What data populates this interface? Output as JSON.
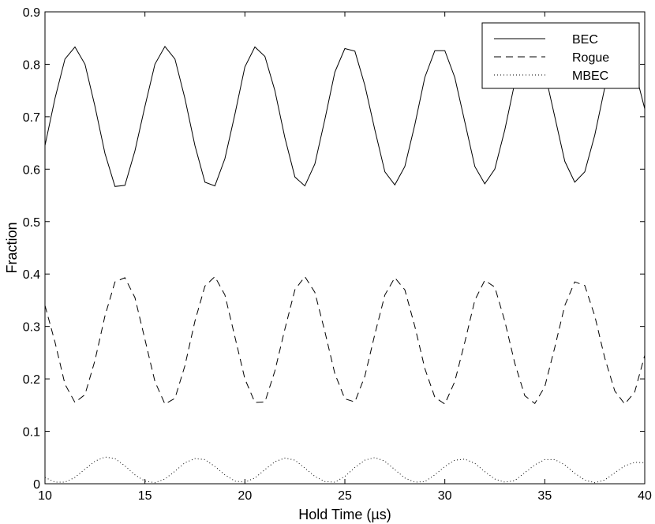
{
  "chart_data": {
    "type": "line",
    "title": "",
    "xlabel": "Hold Time (µs)",
    "ylabel": "Fraction",
    "xlim": [
      10,
      40
    ],
    "ylim": [
      0,
      0.9
    ],
    "xticks": [
      "10",
      "15",
      "20",
      "25",
      "30",
      "35",
      "40"
    ],
    "yticks": [
      "0",
      "0.1",
      "0.2",
      "0.3",
      "0.4",
      "0.5",
      "0.6",
      "0.7",
      "0.8",
      "0.9"
    ],
    "grid": false,
    "legend_position": "top-right",
    "series": [
      {
        "name": "BEC",
        "line_style": "solid",
        "points": [
          [
            10.0,
            0.645
          ],
          [
            10.5,
            0.735
          ],
          [
            11.0,
            0.81
          ],
          [
            11.5,
            0.833
          ],
          [
            12.0,
            0.8
          ],
          [
            12.5,
            0.72
          ],
          [
            13.0,
            0.63
          ],
          [
            13.5,
            0.567
          ],
          [
            14.0,
            0.569
          ],
          [
            14.5,
            0.635
          ],
          [
            15.0,
            0.72
          ],
          [
            15.5,
            0.8
          ],
          [
            16.0,
            0.834
          ],
          [
            16.5,
            0.81
          ],
          [
            17.0,
            0.735
          ],
          [
            17.5,
            0.645
          ],
          [
            18.0,
            0.575
          ],
          [
            18.5,
            0.568
          ],
          [
            19.0,
            0.62
          ],
          [
            19.5,
            0.705
          ],
          [
            20.0,
            0.795
          ],
          [
            20.5,
            0.833
          ],
          [
            21.0,
            0.815
          ],
          [
            21.5,
            0.75
          ],
          [
            22.0,
            0.66
          ],
          [
            22.5,
            0.585
          ],
          [
            23.0,
            0.568
          ],
          [
            23.5,
            0.61
          ],
          [
            24.0,
            0.695
          ],
          [
            24.5,
            0.785
          ],
          [
            25.0,
            0.83
          ],
          [
            25.5,
            0.825
          ],
          [
            26.0,
            0.76
          ],
          [
            26.5,
            0.675
          ],
          [
            27.0,
            0.595
          ],
          [
            27.5,
            0.57
          ],
          [
            28.0,
            0.605
          ],
          [
            28.5,
            0.685
          ],
          [
            29.0,
            0.775
          ],
          [
            29.5,
            0.826
          ],
          [
            30.0,
            0.826
          ],
          [
            30.5,
            0.775
          ],
          [
            31.0,
            0.69
          ],
          [
            31.5,
            0.605
          ],
          [
            32.0,
            0.572
          ],
          [
            32.5,
            0.6
          ],
          [
            33.0,
            0.675
          ],
          [
            33.5,
            0.765
          ],
          [
            34.0,
            0.822
          ],
          [
            34.5,
            0.83
          ],
          [
            35.0,
            0.785
          ],
          [
            35.5,
            0.7
          ],
          [
            36.0,
            0.615
          ],
          [
            36.5,
            0.575
          ],
          [
            37.0,
            0.595
          ],
          [
            37.5,
            0.665
          ],
          [
            38.0,
            0.755
          ],
          [
            38.5,
            0.817
          ],
          [
            39.0,
            0.832
          ],
          [
            39.5,
            0.79
          ],
          [
            40.0,
            0.715
          ]
        ]
      },
      {
        "name": "Rogue",
        "line_style": "dashed",
        "points": [
          [
            10.0,
            0.34
          ],
          [
            10.5,
            0.27
          ],
          [
            11.0,
            0.19
          ],
          [
            11.5,
            0.155
          ],
          [
            12.0,
            0.17
          ],
          [
            12.5,
            0.235
          ],
          [
            13.0,
            0.32
          ],
          [
            13.5,
            0.385
          ],
          [
            14.0,
            0.393
          ],
          [
            14.5,
            0.355
          ],
          [
            15.0,
            0.275
          ],
          [
            15.5,
            0.195
          ],
          [
            16.0,
            0.152
          ],
          [
            16.5,
            0.163
          ],
          [
            17.0,
            0.225
          ],
          [
            17.5,
            0.31
          ],
          [
            18.0,
            0.377
          ],
          [
            18.5,
            0.395
          ],
          [
            19.0,
            0.36
          ],
          [
            19.5,
            0.28
          ],
          [
            20.0,
            0.2
          ],
          [
            20.5,
            0.155
          ],
          [
            21.0,
            0.156
          ],
          [
            21.5,
            0.215
          ],
          [
            22.0,
            0.295
          ],
          [
            22.5,
            0.37
          ],
          [
            23.0,
            0.395
          ],
          [
            23.5,
            0.365
          ],
          [
            24.0,
            0.29
          ],
          [
            24.5,
            0.21
          ],
          [
            25.0,
            0.162
          ],
          [
            25.5,
            0.156
          ],
          [
            26.0,
            0.205
          ],
          [
            26.5,
            0.285
          ],
          [
            27.0,
            0.36
          ],
          [
            27.5,
            0.393
          ],
          [
            28.0,
            0.37
          ],
          [
            28.5,
            0.3
          ],
          [
            29.0,
            0.22
          ],
          [
            29.5,
            0.165
          ],
          [
            30.0,
            0.152
          ],
          [
            30.5,
            0.195
          ],
          [
            31.0,
            0.27
          ],
          [
            31.5,
            0.35
          ],
          [
            32.0,
            0.388
          ],
          [
            32.5,
            0.375
          ],
          [
            33.0,
            0.31
          ],
          [
            33.5,
            0.23
          ],
          [
            34.0,
            0.168
          ],
          [
            34.5,
            0.153
          ],
          [
            35.0,
            0.185
          ],
          [
            35.5,
            0.26
          ],
          [
            36.0,
            0.34
          ],
          [
            36.5,
            0.385
          ],
          [
            37.0,
            0.378
          ],
          [
            37.5,
            0.32
          ],
          [
            38.0,
            0.24
          ],
          [
            38.5,
            0.177
          ],
          [
            39.0,
            0.152
          ],
          [
            39.5,
            0.175
          ],
          [
            40.0,
            0.245
          ]
        ]
      },
      {
        "name": "MBEC",
        "line_style": "dotted",
        "points": [
          [
            10.0,
            0.012
          ],
          [
            10.5,
            0.003
          ],
          [
            11.0,
            0.003
          ],
          [
            11.5,
            0.012
          ],
          [
            12.0,
            0.028
          ],
          [
            12.5,
            0.043
          ],
          [
            13.0,
            0.051
          ],
          [
            13.5,
            0.048
          ],
          [
            14.0,
            0.034
          ],
          [
            14.5,
            0.017
          ],
          [
            15.0,
            0.005
          ],
          [
            15.5,
            0.002
          ],
          [
            16.0,
            0.009
          ],
          [
            16.5,
            0.024
          ],
          [
            17.0,
            0.04
          ],
          [
            17.5,
            0.048
          ],
          [
            18.0,
            0.046
          ],
          [
            18.5,
            0.033
          ],
          [
            19.0,
            0.017
          ],
          [
            19.5,
            0.005
          ],
          [
            20.0,
            0.003
          ],
          [
            20.5,
            0.011
          ],
          [
            21.0,
            0.027
          ],
          [
            21.5,
            0.042
          ],
          [
            22.0,
            0.049
          ],
          [
            22.5,
            0.045
          ],
          [
            23.0,
            0.03
          ],
          [
            23.5,
            0.014
          ],
          [
            24.0,
            0.004
          ],
          [
            24.5,
            0.003
          ],
          [
            25.0,
            0.014
          ],
          [
            25.5,
            0.031
          ],
          [
            26.0,
            0.045
          ],
          [
            26.5,
            0.05
          ],
          [
            27.0,
            0.043
          ],
          [
            27.5,
            0.027
          ],
          [
            28.0,
            0.011
          ],
          [
            28.5,
            0.003
          ],
          [
            29.0,
            0.004
          ],
          [
            29.5,
            0.017
          ],
          [
            30.0,
            0.033
          ],
          [
            30.5,
            0.045
          ],
          [
            31.0,
            0.047
          ],
          [
            31.5,
            0.039
          ],
          [
            32.0,
            0.023
          ],
          [
            32.5,
            0.009
          ],
          [
            33.0,
            0.003
          ],
          [
            33.5,
            0.006
          ],
          [
            34.0,
            0.021
          ],
          [
            34.5,
            0.036
          ],
          [
            35.0,
            0.046
          ],
          [
            35.5,
            0.046
          ],
          [
            36.0,
            0.036
          ],
          [
            36.5,
            0.02
          ],
          [
            37.0,
            0.007
          ],
          [
            37.5,
            0.002
          ],
          [
            38.0,
            0.007
          ],
          [
            38.5,
            0.021
          ],
          [
            39.0,
            0.034
          ],
          [
            39.5,
            0.041
          ],
          [
            40.0,
            0.04
          ]
        ]
      }
    ]
  }
}
